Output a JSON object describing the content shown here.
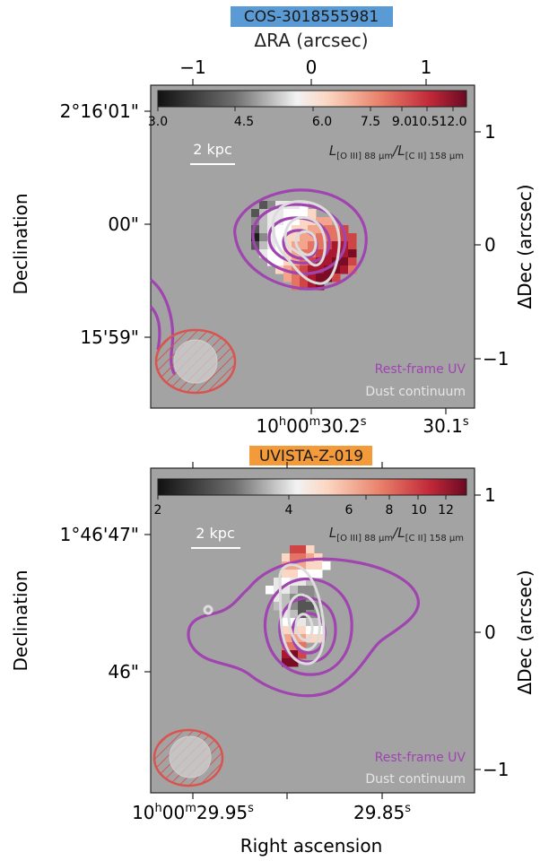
{
  "chart_data": [
    {
      "type": "heatmap",
      "target_name": "COS-3018555981",
      "target_color": "#5b9bd5",
      "top_axis_label": "ΔRA (arcsec)",
      "top_ticks": [
        {
          "value": -1,
          "label": "−1"
        },
        {
          "value": 0,
          "label": "0"
        },
        {
          "value": 1,
          "label": "1"
        }
      ],
      "right_axis_label": "ΔDec (arcsec)",
      "right_ticks": [
        {
          "value": 1,
          "label": "1"
        },
        {
          "value": 0,
          "label": "0"
        },
        {
          "value": -1,
          "label": "−1"
        }
      ],
      "left_axis_label": "Declination",
      "left_ticks": [
        "2°16'01\"",
        "00\"",
        "15'59\""
      ],
      "bottom_ticks": [
        {
          "main": "10",
          "sup1": "h",
          "mid": "00",
          "sup2": "m",
          "tail": "30.2",
          "sup3": "s"
        },
        {
          "main": "",
          "sup1": "",
          "mid": "",
          "sup2": "",
          "tail": "30.1",
          "sup3": "s"
        }
      ],
      "colorbar_ticks": [
        "3.0",
        "4.5",
        "6.0",
        "7.5",
        "9.0",
        "10.5",
        "12.0"
      ],
      "colorbar_label_parts": [
        "L",
        "[O III] 88 μm",
        "/L",
        "[C II] 158 μm"
      ],
      "scalebar_label": "2 kpc",
      "legend": [
        {
          "label": "Rest-frame UV",
          "color": "#a044b0"
        },
        {
          "label": "Dust continuum",
          "color": "#d9d9d9"
        }
      ]
    },
    {
      "type": "heatmap",
      "target_name": "UVISTA-Z-019",
      "target_color": "#f39a3a",
      "right_axis_label": "ΔDec (arcsec)",
      "right_ticks": [
        {
          "value": 1,
          "label": "1"
        },
        {
          "value": 0,
          "label": "0"
        },
        {
          "value": -1,
          "label": "−1"
        }
      ],
      "left_axis_label": "Declination",
      "left_ticks": [
        "1°46'47\"",
        "46\""
      ],
      "bottom_axis_label": "Right ascension",
      "bottom_ticks": [
        {
          "main": "10",
          "sup1": "h",
          "mid": "00",
          "sup2": "m",
          "tail": "29.95",
          "sup3": "s"
        },
        {
          "main": "",
          "sup1": "",
          "mid": "",
          "sup2": "",
          "tail": "29.85",
          "sup3": "s"
        }
      ],
      "colorbar_ticks": [
        "2",
        "4",
        "6",
        "8",
        "10",
        "12"
      ],
      "colorbar_label_parts": [
        "L",
        "[O III] 88 μm",
        "/L",
        "[C II] 158 μm"
      ],
      "scalebar_label": "2 kpc",
      "legend": [
        {
          "label": "Rest-frame UV",
          "color": "#a044b0"
        },
        {
          "label": "Dust continuum",
          "color": "#d9d9d9"
        }
      ]
    }
  ]
}
